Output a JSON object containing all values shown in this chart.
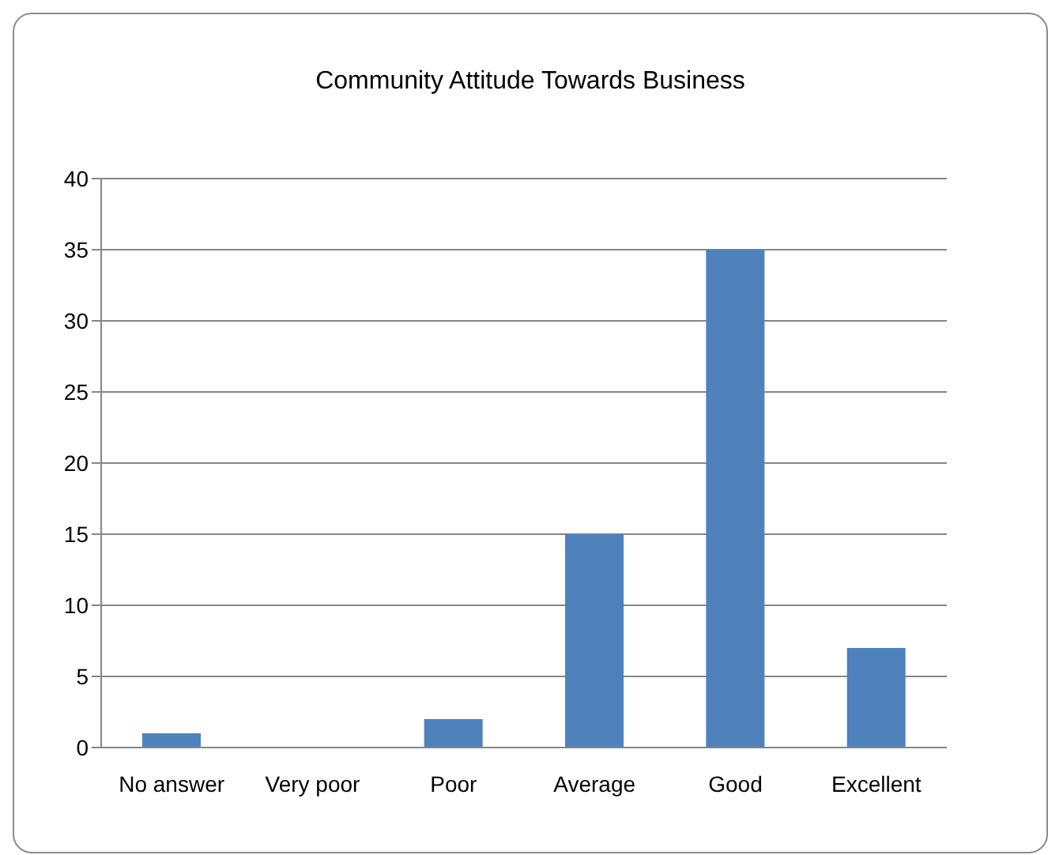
{
  "chart_data": {
    "type": "bar",
    "title": "Community Attitude Towards Business",
    "categories": [
      "No answer",
      "Very poor",
      "Poor",
      "Average",
      "Good",
      "Excellent"
    ],
    "values": [
      1,
      0,
      2,
      15,
      35,
      7
    ],
    "color": "#4f81bd",
    "ylim": [
      0,
      40
    ],
    "yticks": [
      0,
      5,
      10,
      15,
      20,
      25,
      30,
      35,
      40
    ],
    "grid": "y"
  }
}
